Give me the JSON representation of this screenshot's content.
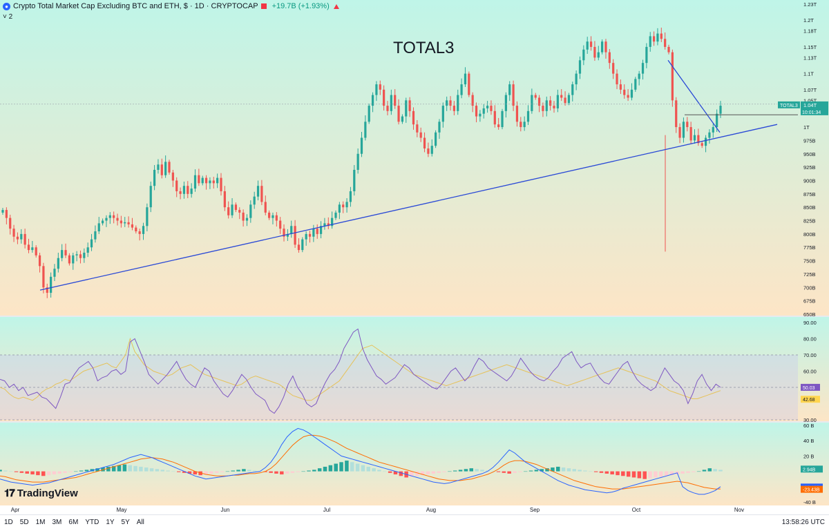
{
  "header": {
    "title": "Crypto Total Market Cap Excluding BTC and ETH, $ · 1D · CRYPTOCAP",
    "change": "+19.7B (+1.93%)",
    "indicators_count": "2"
  },
  "annotation": "TOTAL3",
  "brand": "TradingView",
  "timeframes": [
    "1D",
    "5D",
    "1M",
    "3M",
    "6M",
    "YTD",
    "1Y",
    "5Y",
    "All"
  ],
  "clock": "13:58:26 UTC",
  "price_tag": {
    "symbol": "TOTAL3",
    "price": "1.04T",
    "countdown": "10:01:34"
  },
  "colors": {
    "up": "#26a69a",
    "down": "#ef5350",
    "trendline": "#2948d6",
    "rsi_line": "#7e57c2",
    "rsi_ma": "#ffd54f",
    "macd_line": "#2962ff",
    "signal_line": "#ff6d00",
    "hist_up_strong": "#26a69a",
    "hist_up_weak": "#b2dfdb",
    "hist_down_strong": "#ff5252",
    "hist_down_weak": "#ffcdd2",
    "bg_top": "#bff5e8",
    "bg_bottom": "#fde5c6"
  },
  "chart_data": [
    {
      "type": "candlestick",
      "series": [
        {
          "name": "TOTAL3"
        }
      ],
      "x_labels": [
        "Apr",
        "May",
        "Jun",
        "Jul",
        "Aug",
        "Sep",
        "Oct",
        "Nov"
      ],
      "price_axis_labels": [
        "1.23T",
        "1.2T",
        "1.18T",
        "1.15T",
        "1.13T",
        "1.1T",
        "1.07T",
        "1.05T",
        "1T",
        "975B",
        "950B",
        "925B",
        "900B",
        "875B",
        "850B",
        "825B",
        "800B",
        "775B",
        "750B",
        "725B",
        "700B",
        "675B",
        "650B"
      ],
      "ylim": [
        650,
        1230
      ],
      "unit": "B",
      "close_series": [
        845,
        830,
        810,
        795,
        790,
        800,
        780,
        770,
        775,
        760,
        740,
        700,
        690,
        720,
        735,
        755,
        770,
        760,
        745,
        760,
        762,
        755,
        765,
        775,
        790,
        805,
        820,
        825,
        830,
        835,
        830,
        825,
        820,
        822,
        818,
        812,
        805,
        800,
        815,
        850,
        890,
        920,
        930,
        910,
        935,
        915,
        900,
        880,
        875,
        890,
        875,
        885,
        910,
        895,
        905,
        895,
        900,
        895,
        905,
        880,
        850,
        835,
        855,
        845,
        840,
        825,
        830,
        855,
        870,
        890,
        860,
        840,
        830,
        835,
        825,
        810,
        795,
        800,
        815,
        780,
        770,
        790,
        800,
        795,
        810,
        800,
        815,
        820,
        815,
        830,
        840,
        855,
        850,
        860,
        880,
        920,
        950,
        980,
        1010,
        1040,
        1060,
        1080,
        1070,
        1040,
        1030,
        1060,
        1040,
        1010,
        1020,
        1050,
        1030,
        1005,
        990,
        980,
        960,
        950,
        965,
        990,
        1010,
        1040,
        1050,
        1040,
        1030,
        1060,
        1080,
        1100,
        1060,
        1040,
        1020,
        1025,
        1035,
        1040,
        1030,
        1005,
        1000,
        1030,
        1060,
        1080,
        1040,
        1010,
        1000,
        1010,
        1030,
        1060,
        1055,
        1040,
        1030,
        1050,
        1040,
        1035,
        1060,
        1055,
        1045,
        1060,
        1080,
        1100,
        1125,
        1145,
        1160,
        1150,
        1130,
        1140,
        1160,
        1140,
        1120,
        1100,
        1080,
        1070,
        1060,
        1055,
        1070,
        1090,
        1100,
        1120,
        1150,
        1170,
        1160,
        1175,
        1165,
        1150,
        1140,
        1050,
        1000,
        980,
        1010,
        1000,
        975,
        985,
        970,
        965,
        980,
        990,
        1000,
        1025,
        1040
      ],
      "trendline_support": {
        "from": {
          "x": "Apr",
          "y": 695
        },
        "to": {
          "x": "Nov",
          "y": 1005
        }
      }
    },
    {
      "type": "line",
      "title": "RSI",
      "ylim": [
        30,
        90
      ],
      "axis_labels": [
        "90.00",
        "80.00",
        "70.00",
        "60.00",
        "30.00"
      ],
      "series": [
        {
          "values": [
            50,
            49,
            46,
            44,
            43,
            44,
            43,
            42,
            44,
            47,
            49,
            50,
            52,
            53,
            55,
            54,
            56,
            58,
            60,
            61,
            62,
            63,
            64,
            65,
            63,
            62,
            66,
            70,
            80,
            72,
            68,
            64,
            62,
            60,
            59,
            58,
            57,
            58,
            60,
            62,
            63,
            64,
            62,
            60,
            58,
            57,
            56,
            55,
            54,
            53,
            52,
            51,
            52,
            54,
            56,
            57,
            56,
            55,
            54,
            53,
            52,
            50,
            47,
            45,
            44,
            43,
            42,
            42,
            44,
            46,
            48,
            50,
            52,
            54,
            58,
            62,
            66,
            70,
            74,
            75,
            76,
            74,
            72,
            70,
            68,
            66,
            64,
            62,
            60,
            58,
            57,
            56,
            55,
            54,
            53,
            52,
            51,
            52,
            53,
            54,
            55,
            56,
            57,
            58,
            59,
            60,
            61,
            62,
            63,
            64,
            63,
            62,
            61,
            60,
            59,
            58,
            57,
            56,
            55,
            54,
            53,
            52,
            51,
            52,
            53,
            54,
            55,
            56,
            57,
            58,
            59,
            60,
            61,
            62,
            61,
            60,
            59,
            58,
            57,
            56,
            55,
            54,
            52,
            50,
            48,
            47,
            46,
            45,
            44,
            43,
            43,
            44,
            45,
            46,
            47,
            48
          ]
        },
        {
          "values": [
            55,
            54,
            50,
            52,
            48,
            50,
            45,
            46,
            47,
            44,
            43,
            40,
            37,
            44,
            52,
            53,
            58,
            62,
            64,
            66,
            62,
            54,
            56,
            57,
            60,
            61,
            58,
            60,
            78,
            80,
            73,
            66,
            58,
            55,
            52,
            55,
            58,
            62,
            66,
            60,
            55,
            52,
            50,
            56,
            62,
            60,
            54,
            50,
            46,
            44,
            48,
            53,
            58,
            55,
            50,
            46,
            44,
            42,
            36,
            34,
            38,
            44,
            52,
            57,
            50,
            46,
            40,
            38,
            40,
            47,
            53,
            58,
            61,
            66,
            74,
            79,
            84,
            86,
            74,
            67,
            62,
            57,
            55,
            52,
            54,
            56,
            60,
            64,
            62,
            58,
            56,
            54,
            52,
            50,
            49,
            52,
            56,
            60,
            62,
            58,
            54,
            57,
            63,
            68,
            66,
            62,
            60,
            58,
            56,
            54,
            57,
            62,
            68,
            64,
            60,
            57,
            55,
            54,
            56,
            60,
            63,
            68,
            70,
            72,
            66,
            62,
            64,
            65,
            60,
            56,
            53,
            52,
            56,
            60,
            64,
            66,
            60,
            55,
            52,
            50,
            48,
            50,
            56,
            62,
            58,
            54,
            52,
            48,
            40,
            46,
            54,
            58,
            52,
            48,
            52,
            50
          ]
        }
      ],
      "value_tags": [
        "50.03",
        "42.68"
      ]
    },
    {
      "type": "bar",
      "title": "MACD",
      "ylim": [
        -40,
        60
      ],
      "axis_labels": [
        "60 B",
        "40 B",
        "20 B",
        "-40 B"
      ],
      "histogram": [
        2,
        1,
        0,
        -1,
        -2,
        -3,
        -4,
        -5,
        -6,
        -5,
        -4,
        -3,
        -2,
        -1,
        0,
        1,
        2,
        3,
        4,
        5,
        6,
        7,
        8,
        9,
        8,
        7,
        6,
        5,
        4,
        3,
        2,
        1,
        0,
        -1,
        -2,
        -3,
        -4,
        -5,
        -4,
        -3,
        -2,
        -1,
        0,
        1,
        2,
        3,
        2,
        1,
        0,
        -1,
        -2,
        -3,
        -4,
        -3,
        -2,
        -1,
        0,
        1,
        2,
        4,
        6,
        8,
        10,
        12,
        14,
        12,
        10,
        8,
        6,
        4,
        2,
        0,
        -2,
        -4,
        -6,
        -8,
        -7,
        -6,
        -5,
        -4,
        -3,
        -2,
        -1,
        0,
        1,
        2,
        3,
        4,
        3,
        2,
        1,
        0,
        -1,
        -2,
        -3,
        -2,
        -1,
        0,
        1,
        2,
        3,
        4,
        5,
        6,
        5,
        4,
        3,
        2,
        1,
        0,
        -1,
        -2,
        -3,
        -4,
        -5,
        -6,
        -7,
        -8,
        -9,
        -10,
        -9,
        -8,
        -7,
        -6,
        -5,
        -4,
        -3,
        -2,
        -1,
        0,
        2,
        4,
        3,
        2
      ],
      "macd": [
        -10,
        -12,
        -14,
        -15,
        -16,
        -17,
        -18,
        -17,
        -16,
        -15,
        -13,
        -11,
        -9,
        -7,
        -5,
        -3,
        -1,
        1,
        3,
        5,
        7,
        9,
        12,
        15,
        18,
        20,
        22,
        20,
        18,
        15,
        12,
        9,
        6,
        3,
        0,
        -3,
        -6,
        -8,
        -10,
        -9,
        -8,
        -7,
        -6,
        -5,
        -4,
        -3,
        -2,
        -1,
        0,
        5,
        12,
        22,
        35,
        45,
        52,
        56,
        54,
        50,
        45,
        40,
        35,
        30,
        25,
        20,
        18,
        16,
        14,
        12,
        10,
        8,
        6,
        4,
        2,
        0,
        -2,
        -4,
        -6,
        -8,
        -10,
        -12,
        -14,
        -15,
        -16,
        -15,
        -13,
        -11,
        -9,
        -7,
        -5,
        -3,
        0,
        5,
        12,
        20,
        28,
        24,
        18,
        12,
        8,
        4,
        0,
        -4,
        -8,
        -12,
        -15,
        -18,
        -20,
        -22,
        -24,
        -25,
        -26,
        -27,
        -28,
        -27,
        -25,
        -22,
        -20,
        -18,
        -16,
        -14,
        -12,
        -10,
        -8,
        -6,
        -4,
        -2,
        -20,
        -25,
        -28,
        -30,
        -30,
        -28,
        -25,
        -20
      ],
      "signal": [
        -6,
        -7,
        -9,
        -11,
        -12,
        -13,
        -14,
        -14,
        -14,
        -13,
        -12,
        -11,
        -10,
        -9,
        -8,
        -6,
        -4,
        -2,
        0,
        2,
        4,
        6,
        8,
        10,
        12,
        14,
        16,
        17,
        18,
        17,
        16,
        14,
        12,
        9,
        6,
        3,
        0,
        -2,
        -4,
        -5,
        -6,
        -6,
        -6,
        -5,
        -5,
        -4,
        -3,
        -3,
        -2,
        0,
        4,
        10,
        18,
        26,
        34,
        40,
        45,
        47,
        47,
        46,
        44,
        41,
        38,
        34,
        30,
        27,
        24,
        21,
        18,
        15,
        12,
        10,
        8,
        6,
        4,
        2,
        0,
        -2,
        -4,
        -6,
        -8,
        -10,
        -11,
        -12,
        -12,
        -12,
        -11,
        -10,
        -8,
        -6,
        -4,
        -1,
        3,
        8,
        12,
        14,
        14,
        13,
        11,
        9,
        6,
        3,
        0,
        -3,
        -6,
        -9,
        -12,
        -14,
        -16,
        -18,
        -20,
        -21,
        -22,
        -23,
        -23,
        -23,
        -22,
        -21,
        -20,
        -19,
        -18,
        -17,
        -16,
        -15,
        -14,
        -13,
        -14,
        -15,
        -17,
        -19,
        -21,
        -22,
        -23,
        -23
      ],
      "value_tags": [
        "2.94B",
        "-20.49B",
        "-23.43B"
      ]
    }
  ]
}
